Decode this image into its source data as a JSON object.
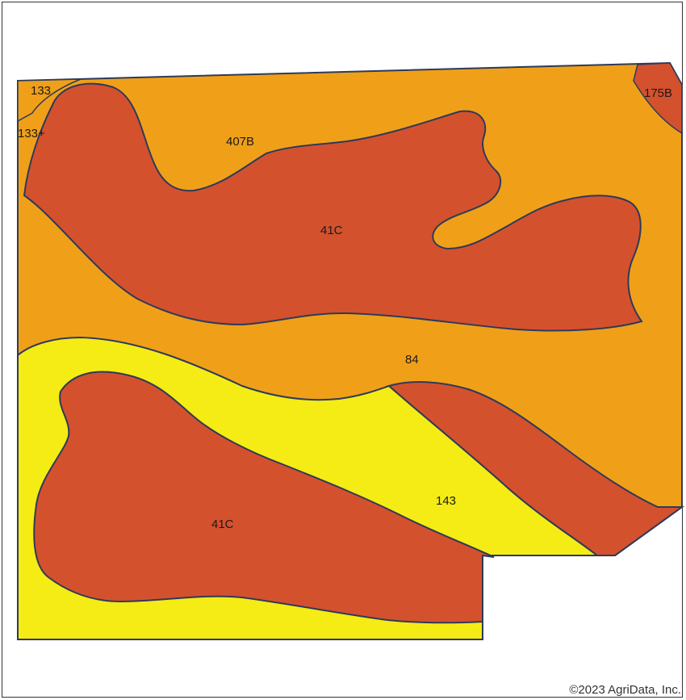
{
  "colors": {
    "orange": "#f0a018",
    "red": "#d4512e",
    "yellow": "#f4ec14",
    "boundary": "#2d3a5a"
  },
  "soil_units": [
    {
      "label": "133",
      "color": "orange"
    },
    {
      "label": "133+",
      "color": "orange"
    },
    {
      "label": "175B",
      "color": "red"
    },
    {
      "label": "407B",
      "color": "orange"
    },
    {
      "label": "41C",
      "color": "red"
    },
    {
      "label": "84",
      "color": "orange"
    },
    {
      "label": "143",
      "color": "yellow"
    },
    {
      "label": "41C",
      "color": "red"
    }
  ],
  "copyright": "©2023 AgriData, Inc."
}
